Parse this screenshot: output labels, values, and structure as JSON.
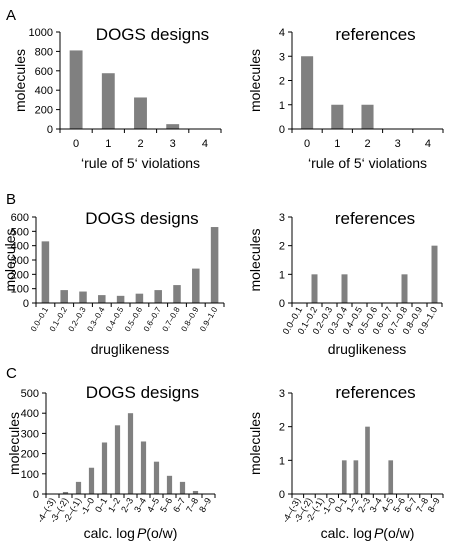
{
  "panels": [
    {
      "label": "A"
    },
    {
      "label": "B"
    },
    {
      "label": "C"
    }
  ],
  "chart_data": [
    {
      "id": "A-dogs",
      "type": "bar",
      "title": "DOGS designs",
      "xlabel": "‘rule of 5‘ violations",
      "ylabel": "molecules",
      "categories": [
        "0",
        "1",
        "2",
        "3",
        "4"
      ],
      "values": [
        810,
        575,
        325,
        50,
        0
      ],
      "ylim": [
        0,
        1000
      ],
      "yticks": [
        "0",
        "200",
        "400",
        "600",
        "800",
        "1000"
      ],
      "bar_color": "#808080",
      "grid": false
    },
    {
      "id": "A-ref",
      "type": "bar",
      "title": "references",
      "xlabel": "‘rule of 5‘ violations",
      "ylabel": "molecules",
      "categories": [
        "0",
        "1",
        "2",
        "3",
        "4"
      ],
      "values": [
        3,
        1,
        1,
        0,
        0
      ],
      "ylim": [
        0,
        4
      ],
      "yticks": [
        "0",
        "1",
        "2",
        "3",
        "4"
      ],
      "bar_color": "#808080",
      "grid": false
    },
    {
      "id": "B-dogs",
      "type": "bar",
      "title": "DOGS designs",
      "xlabel": "druglikeness",
      "ylabel": "molecules",
      "categories": [
        "0.0–0.1",
        "0.1–0.2",
        "0.2–0.3",
        "0.3–0.4",
        "0.4–0.5",
        "0.5–0.6",
        "0.6–0.7",
        "0.7–0.8",
        "0.8–0.9",
        "0.9–1.0"
      ],
      "values": [
        430,
        90,
        80,
        55,
        50,
        65,
        90,
        125,
        240,
        530
      ],
      "ylim": [
        0,
        600
      ],
      "yticks": [
        "0",
        "100",
        "200",
        "300",
        "400",
        "500",
        "600"
      ],
      "bar_color": "#808080",
      "grid": false
    },
    {
      "id": "B-ref",
      "type": "bar",
      "title": "references",
      "xlabel": "druglikeness",
      "ylabel": "molecules",
      "categories": [
        "0.0–0.1",
        "0.1–0.2",
        "0.2–0.3",
        "0.3–0.4",
        "0.4–0.5",
        "0.5–0.6",
        "0.6–0.7",
        "0.7–0.8",
        "0.8–0.9",
        "0.9–1.0"
      ],
      "values": [
        0,
        1,
        0,
        1,
        0,
        0,
        0,
        1,
        0,
        2
      ],
      "ylim": [
        0,
        3
      ],
      "yticks": [
        "0",
        "1",
        "2",
        "3"
      ],
      "bar_color": "#808080",
      "grid": false
    },
    {
      "id": "C-dogs",
      "type": "bar",
      "title": "DOGS designs",
      "xlabel": "calc. log",
      "xlabel_italic": "P",
      "xlabel_suffix": "(o/w)",
      "ylabel": "molecules",
      "categories": [
        "-4–(-3)",
        "-3–(-2)",
        "-2–(-1)",
        "-1–0",
        "0–1",
        "1–2",
        "2–3",
        "3–4",
        "4–5",
        "5–6",
        "6–7",
        "7–8",
        "8–9"
      ],
      "values": [
        0,
        10,
        60,
        130,
        255,
        340,
        400,
        260,
        160,
        90,
        60,
        15,
        0
      ],
      "ylim": [
        0,
        500
      ],
      "yticks": [
        "0",
        "100",
        "200",
        "300",
        "400",
        "500"
      ],
      "bar_color": "#808080",
      "grid": false
    },
    {
      "id": "C-ref",
      "type": "bar",
      "title": "references",
      "xlabel": "calc. log",
      "xlabel_italic": "P",
      "xlabel_suffix": "(o/w)",
      "ylabel": "molecules",
      "categories": [
        "-4–(-3)",
        "-3–(-2)",
        "-2–(-1)",
        "-1–0",
        "0–1",
        "1–2",
        "2–3",
        "3–4",
        "4–5",
        "5–6",
        "6–7",
        "7–8",
        "8–9"
      ],
      "values": [
        0,
        0,
        0,
        0,
        1,
        1,
        2,
        0,
        1,
        0,
        0,
        0,
        0
      ],
      "ylim": [
        0,
        3
      ],
      "yticks": [
        "0",
        "1",
        "2",
        "3"
      ],
      "bar_color": "#808080",
      "grid": false
    }
  ]
}
